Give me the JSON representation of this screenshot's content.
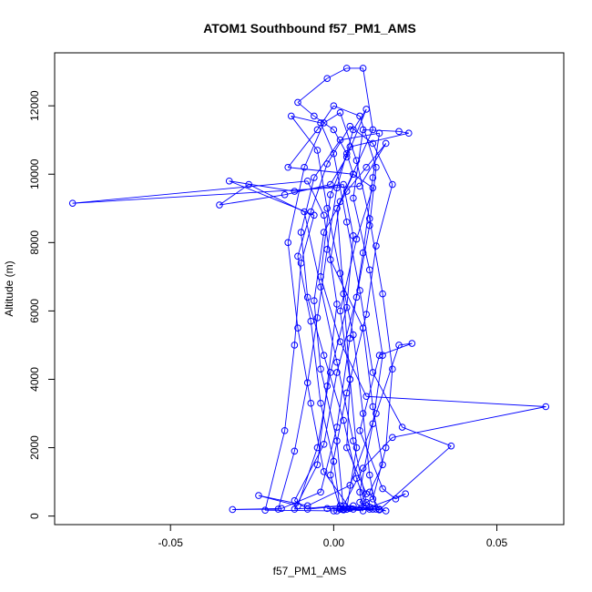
{
  "chart_data": {
    "type": "line",
    "title": "ATOM1 Southbound f57_PM1_AMS",
    "xlabel": "f57_PM1_AMS",
    "ylabel": "Altitude (m)",
    "xlim": [
      -0.0855,
      0.0705
    ],
    "ylim": [
      -250,
      13550
    ],
    "x_ticks": [
      -0.05,
      0.0,
      0.05
    ],
    "x_tick_labels": [
      "-0.05",
      "0.00",
      "0.05"
    ],
    "y_ticks": [
      0,
      2000,
      4000,
      6000,
      8000,
      10000,
      12000
    ],
    "y_tick_labels": [
      "0",
      "2000",
      "4000",
      "6000",
      "8000",
      "10000",
      "12000"
    ],
    "line_style": "connected points with open circles",
    "grid": false,
    "colors": {
      "series": "#0000ff",
      "axes": "#000000",
      "background": "#ffffff"
    },
    "series": [
      {
        "points": [
          [
            0.012,
            200
          ],
          [
            0.001,
            150
          ],
          [
            0.006,
            300
          ],
          [
            0.004,
            200
          ],
          [
            0.003,
            180
          ],
          [
            -0.002,
            220
          ],
          [
            0.011,
            200
          ],
          [
            0.008,
            400
          ],
          [
            0.01,
            650
          ],
          [
            0.004,
            2000
          ],
          [
            0.005,
            4000
          ],
          [
            0.003,
            6500
          ],
          [
            0.001,
            9000
          ],
          [
            0.012,
            11300
          ],
          [
            0.009,
            13100
          ],
          [
            0.004,
            13100
          ],
          [
            -0.002,
            12800
          ],
          [
            -0.011,
            12100
          ],
          [
            -0.006,
            11700
          ],
          [
            0.0,
            11300
          ],
          [
            0.004,
            10600
          ],
          [
            0.006,
            10000
          ],
          [
            0.002,
            9200
          ],
          [
            -0.001,
            7500
          ],
          [
            0.009,
            5500
          ],
          [
            0.012,
            3200
          ],
          [
            0.015,
            1500
          ],
          [
            0.011,
            700
          ],
          [
            0.014,
            200
          ],
          [
            0.002,
            300
          ],
          [
            -0.012,
            200
          ],
          [
            -0.005,
            1500
          ],
          [
            -0.002,
            3800
          ],
          [
            0.001,
            6200
          ],
          [
            -0.003,
            8800
          ],
          [
            -0.008,
            9800
          ],
          [
            -0.08,
            9150
          ],
          [
            0.008,
            9650
          ],
          [
            0.016,
            10900
          ],
          [
            0.01,
            10200
          ],
          [
            0.004,
            9500
          ],
          [
            -0.003,
            8300
          ],
          [
            -0.006,
            6300
          ],
          [
            -0.004,
            4300
          ],
          [
            0.001,
            2200
          ],
          [
            0.003,
            200
          ],
          [
            0.009,
            150
          ],
          [
            0.008,
            700
          ],
          [
            0.012,
            2700
          ],
          [
            0.015,
            4700
          ],
          [
            0.011,
            7200
          ],
          [
            0.006,
            9300
          ],
          [
            0.009,
            11300
          ],
          [
            0.02,
            11250
          ],
          [
            0.023,
            11200
          ],
          [
            0.005,
            10800
          ],
          [
            -0.001,
            9400
          ],
          [
            -0.004,
            7000
          ],
          [
            0.002,
            5100
          ],
          [
            0.01,
            3500
          ],
          [
            0.065,
            3200
          ],
          [
            0.018,
            2300
          ],
          [
            0.009,
            1400
          ],
          [
            0.003,
            300
          ],
          [
            -0.008,
            200
          ],
          [
            -0.012,
            450
          ],
          [
            -0.003,
            2100
          ],
          [
            0.001,
            4200
          ],
          [
            0.007,
            6400
          ],
          [
            0.011,
            8500
          ],
          [
            0.013,
            10200
          ],
          [
            0.008,
            11700
          ],
          [
            0.0,
            12000
          ],
          [
            -0.005,
            11300
          ],
          [
            -0.014,
            10200
          ],
          [
            0.006,
            10000
          ],
          [
            0.012,
            9600
          ],
          [
            0.007,
            8100
          ],
          [
            0.002,
            6000
          ],
          [
            0.005,
            4000
          ],
          [
            0.007,
            2000
          ],
          [
            0.004,
            200
          ],
          [
            0.0,
            150
          ],
          [
            -0.021,
            170
          ],
          [
            -0.015,
            2500
          ],
          [
            -0.012,
            5000
          ],
          [
            -0.01,
            7400
          ],
          [
            -0.006,
            8800
          ],
          [
            -0.032,
            9800
          ],
          [
            -0.012,
            9500
          ],
          [
            0.003,
            9700
          ],
          [
            0.006,
            8200
          ],
          [
            0.004,
            6100
          ],
          [
            -0.001,
            4200
          ],
          [
            -0.005,
            2000
          ],
          [
            -0.011,
            300
          ],
          [
            -0.023,
            600
          ],
          [
            -0.008,
            300
          ],
          [
            0.005,
            900
          ],
          [
            0.013,
            3000
          ],
          [
            0.02,
            5000
          ],
          [
            0.024,
            5050
          ],
          [
            0.014,
            4700
          ],
          [
            0.008,
            2500
          ],
          [
            0.015,
            800
          ],
          [
            0.019,
            500
          ],
          [
            0.022,
            650
          ],
          [
            0.011,
            250
          ],
          [
            0.002,
            200
          ],
          [
            -0.001,
            1200
          ],
          [
            0.004,
            3600
          ],
          [
            0.01,
            5900
          ],
          [
            0.013,
            7900
          ],
          [
            0.018,
            9700
          ],
          [
            0.012,
            10900
          ],
          [
            0.005,
            11400
          ],
          [
            -0.002,
            10300
          ],
          [
            -0.007,
            8900
          ],
          [
            -0.011,
            7600
          ],
          [
            -0.007,
            5700
          ],
          [
            -0.004,
            3300
          ],
          [
            0.0,
            1600
          ],
          [
            0.002,
            200
          ],
          [
            0.014,
            180
          ],
          [
            0.036,
            2050
          ],
          [
            0.021,
            2600
          ],
          [
            0.012,
            4200
          ],
          [
            0.008,
            6600
          ],
          [
            0.004,
            8600
          ],
          [
            0.0,
            10600
          ],
          [
            -0.004,
            11500
          ],
          [
            -0.013,
            11700
          ],
          [
            -0.005,
            10700
          ],
          [
            -0.002,
            9000
          ],
          [
            0.002,
            7100
          ],
          [
            0.006,
            5300
          ],
          [
            0.009,
            3000
          ],
          [
            0.011,
            1200
          ],
          [
            0.013,
            200
          ],
          [
            0.016,
            150
          ],
          [
            0.01,
            400
          ],
          [
            0.006,
            2200
          ],
          [
            0.001,
            4500
          ],
          [
            -0.004,
            6700
          ],
          [
            -0.009,
            8900
          ],
          [
            -0.026,
            9700
          ],
          [
            -0.035,
            9100
          ],
          [
            -0.015,
            9400
          ],
          [
            -0.001,
            9700
          ],
          [
            0.004,
            10500
          ],
          [
            0.01,
            11900
          ],
          [
            0.006,
            11300
          ],
          [
            0.001,
            9600
          ],
          [
            -0.002,
            7800
          ],
          [
            -0.005,
            5800
          ],
          [
            -0.008,
            3900
          ],
          [
            -0.012,
            1900
          ],
          [
            -0.017,
            200
          ],
          [
            -0.031,
            190
          ],
          [
            -0.016,
            220
          ],
          [
            -0.004,
            700
          ],
          [
            0.001,
            2600
          ],
          [
            0.005,
            5200
          ],
          [
            0.009,
            7700
          ],
          [
            0.012,
            9900
          ],
          [
            0.014,
            11200
          ],
          [
            0.002,
            11000
          ],
          [
            -0.006,
            9900
          ],
          [
            -0.01,
            8300
          ],
          [
            -0.008,
            6400
          ],
          [
            -0.003,
            4700
          ],
          [
            0.003,
            2800
          ],
          [
            0.007,
            1100
          ],
          [
            0.01,
            300
          ],
          [
            0.005,
            220
          ],
          [
            -0.003,
            1300
          ],
          [
            -0.007,
            3300
          ],
          [
            -0.011,
            5500
          ],
          [
            -0.014,
            8000
          ],
          [
            -0.009,
            10200
          ],
          [
            -0.003,
            11500
          ],
          [
            0.002,
            11800
          ],
          [
            0.007,
            10400
          ],
          [
            0.011,
            8700
          ],
          [
            0.015,
            6500
          ],
          [
            0.018,
            4300
          ],
          [
            0.016,
            2000
          ],
          [
            0.012,
            500
          ],
          [
            0.006,
            200
          ]
        ]
      }
    ]
  }
}
